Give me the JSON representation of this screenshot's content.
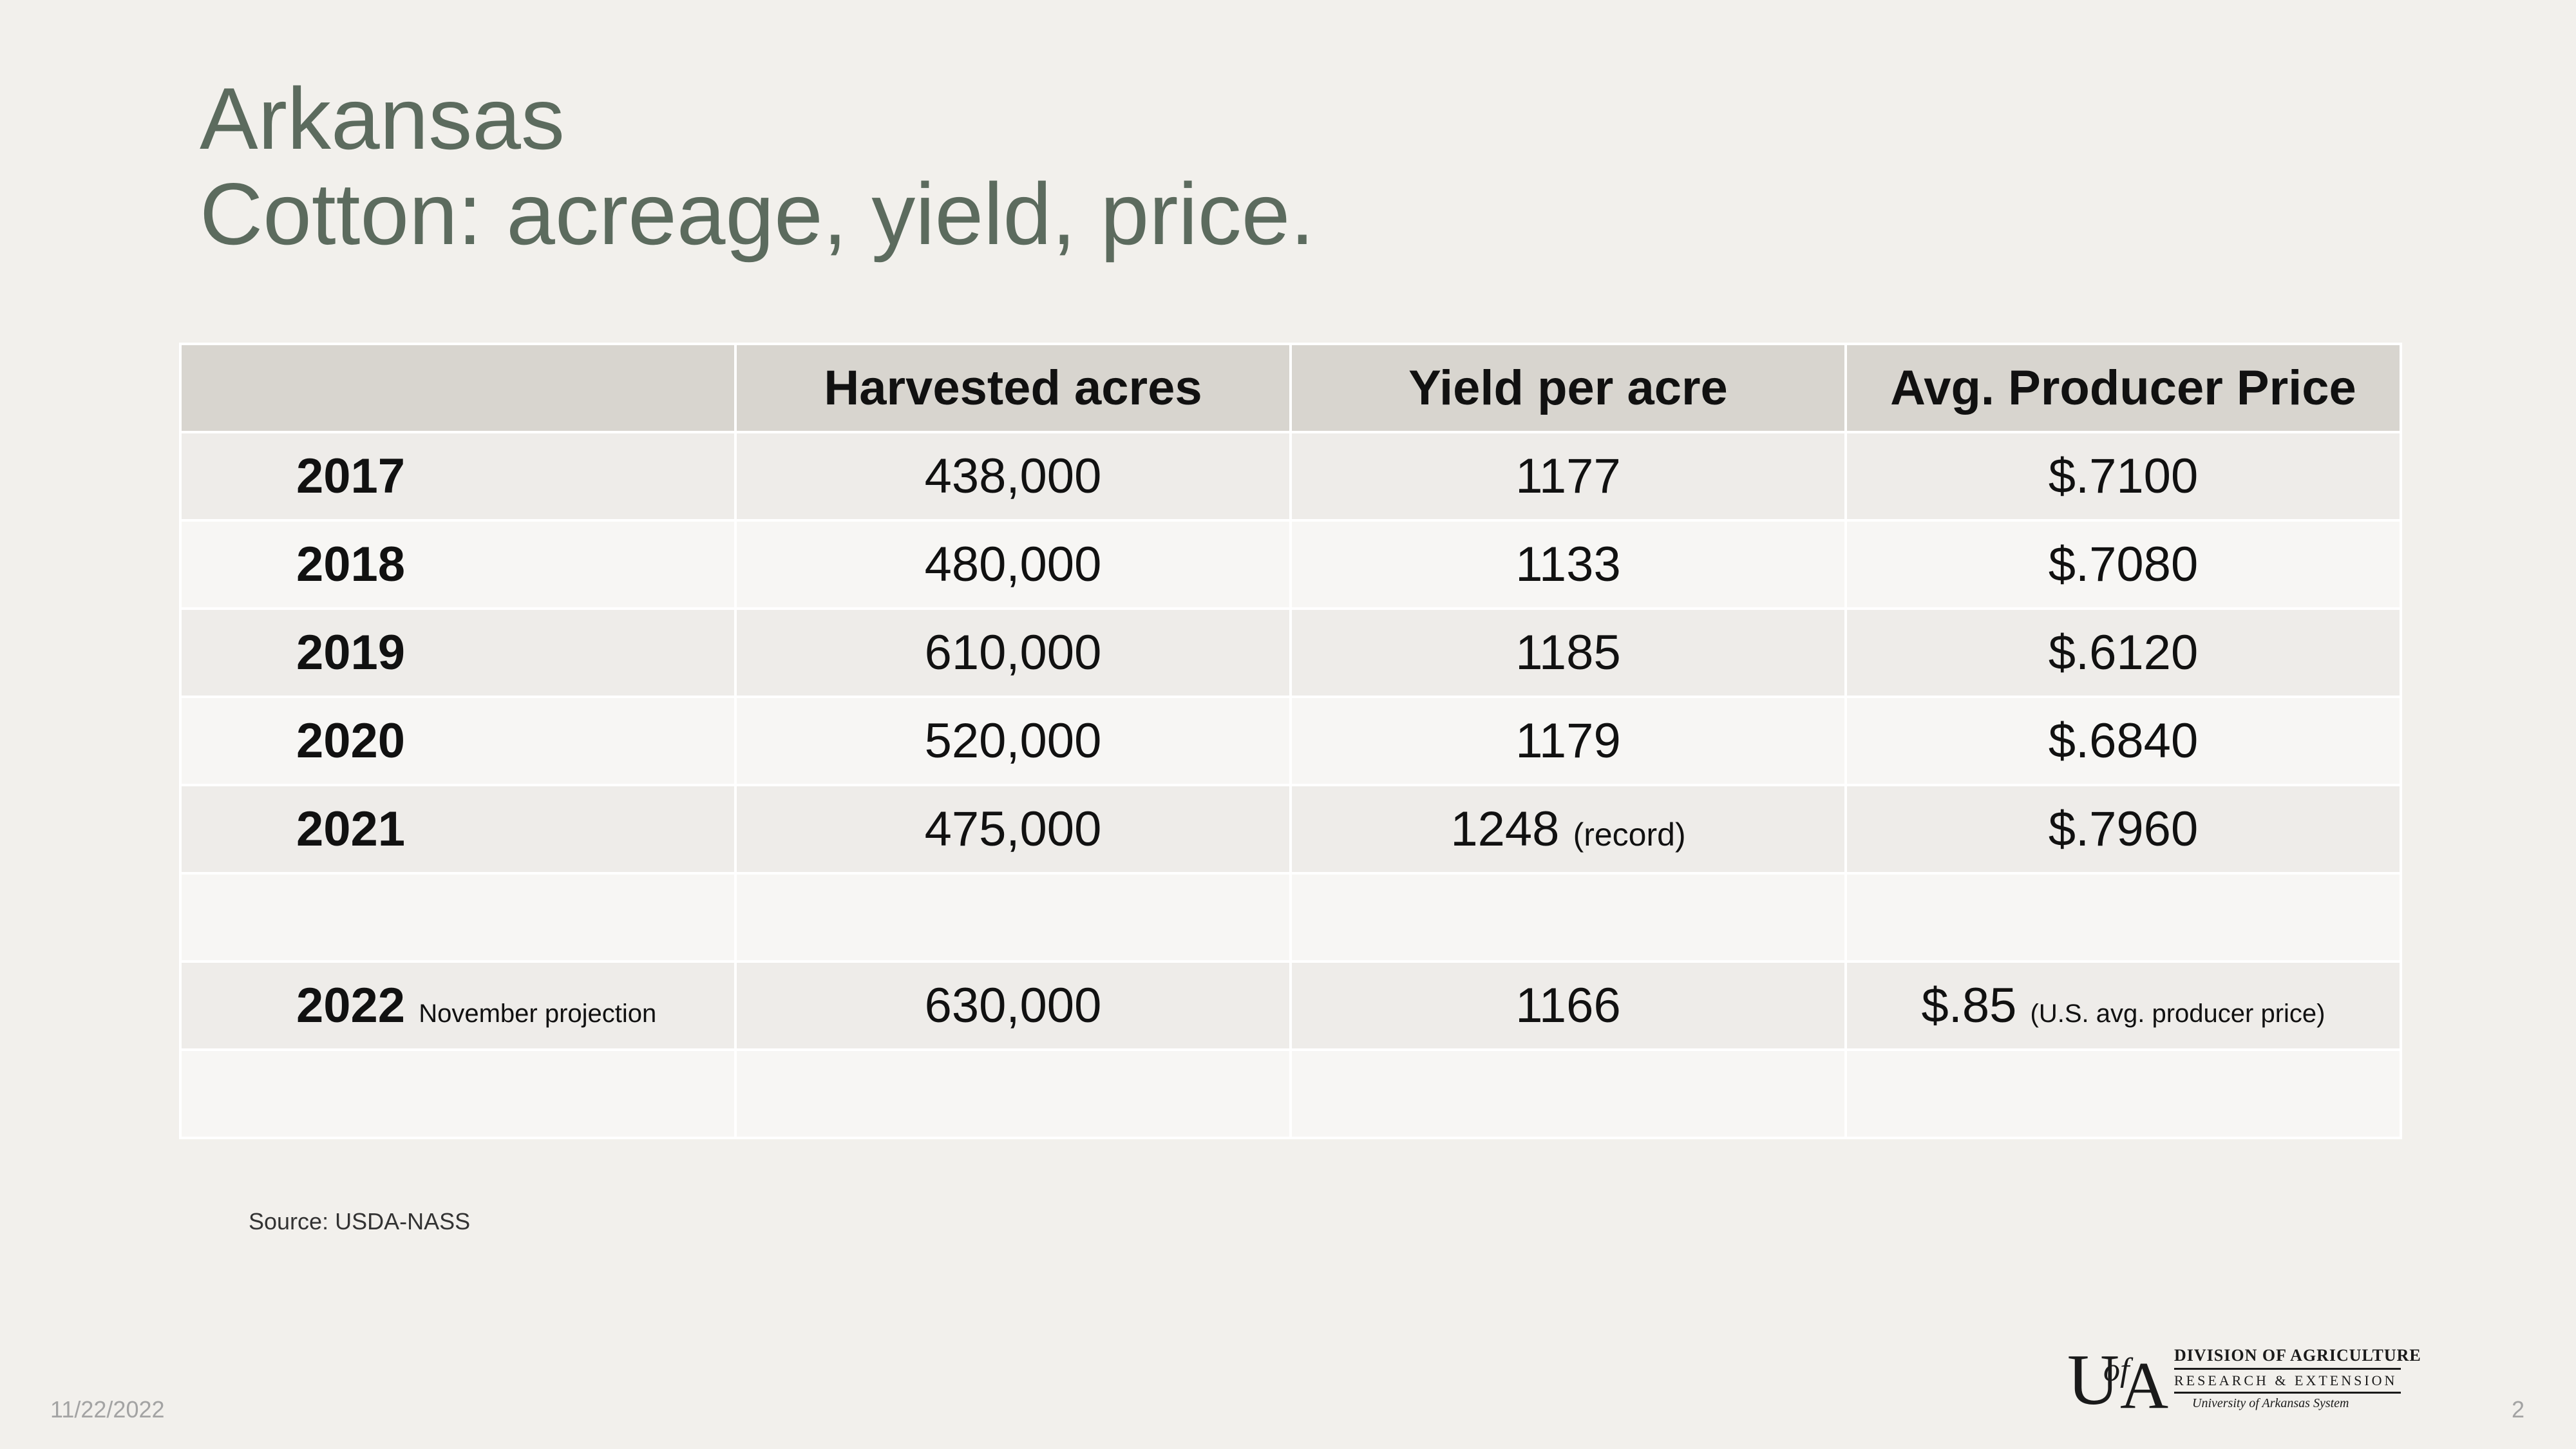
{
  "title": {
    "line1": "Arkansas",
    "line2": "Cotton: acreage, yield, price."
  },
  "table": {
    "headers": [
      "",
      "Harvested acres",
      "Yield per acre",
      "Avg. Producer Price"
    ],
    "rows": [
      {
        "year": "2017",
        "year_note": "",
        "acres": "438,000",
        "yield": "1177",
        "yield_note": "",
        "price": "$.7100",
        "price_note": ""
      },
      {
        "year": "2018",
        "year_note": "",
        "acres": "480,000",
        "yield": "1133",
        "yield_note": "",
        "price": "$.7080",
        "price_note": ""
      },
      {
        "year": "2019",
        "year_note": "",
        "acres": "610,000",
        "yield": "1185",
        "yield_note": "",
        "price": "$.6120",
        "price_note": ""
      },
      {
        "year": "2020",
        "year_note": "",
        "acres": "520,000",
        "yield": "1179",
        "yield_note": "",
        "price": "$.6840",
        "price_note": ""
      },
      {
        "year": "2021",
        "year_note": "",
        "acres": "475,000",
        "yield": "1248",
        "yield_note": "(record)",
        "price": "$.7960",
        "price_note": ""
      },
      {
        "year": "",
        "year_note": "",
        "acres": "",
        "yield": "",
        "yield_note": "",
        "price": "",
        "price_note": ""
      },
      {
        "year": "2022",
        "year_note": "November projection",
        "acres": "630,000",
        "yield": "1166",
        "yield_note": "",
        "price": "$.85",
        "price_note": "(U.S. avg. producer price)"
      },
      {
        "year": "",
        "year_note": "",
        "acres": "",
        "yield": "",
        "yield_note": "",
        "price": "",
        "price_note": ""
      }
    ]
  },
  "source": "Source: USDA-NASS",
  "footer": {
    "date": "11/22/2022",
    "page": "2"
  },
  "logo": {
    "mark": "UofA",
    "line1": "DIVISION OF AGRICULTURE",
    "line2": "RESEARCH & EXTENSION",
    "line3": "University of Arkansas System"
  }
}
